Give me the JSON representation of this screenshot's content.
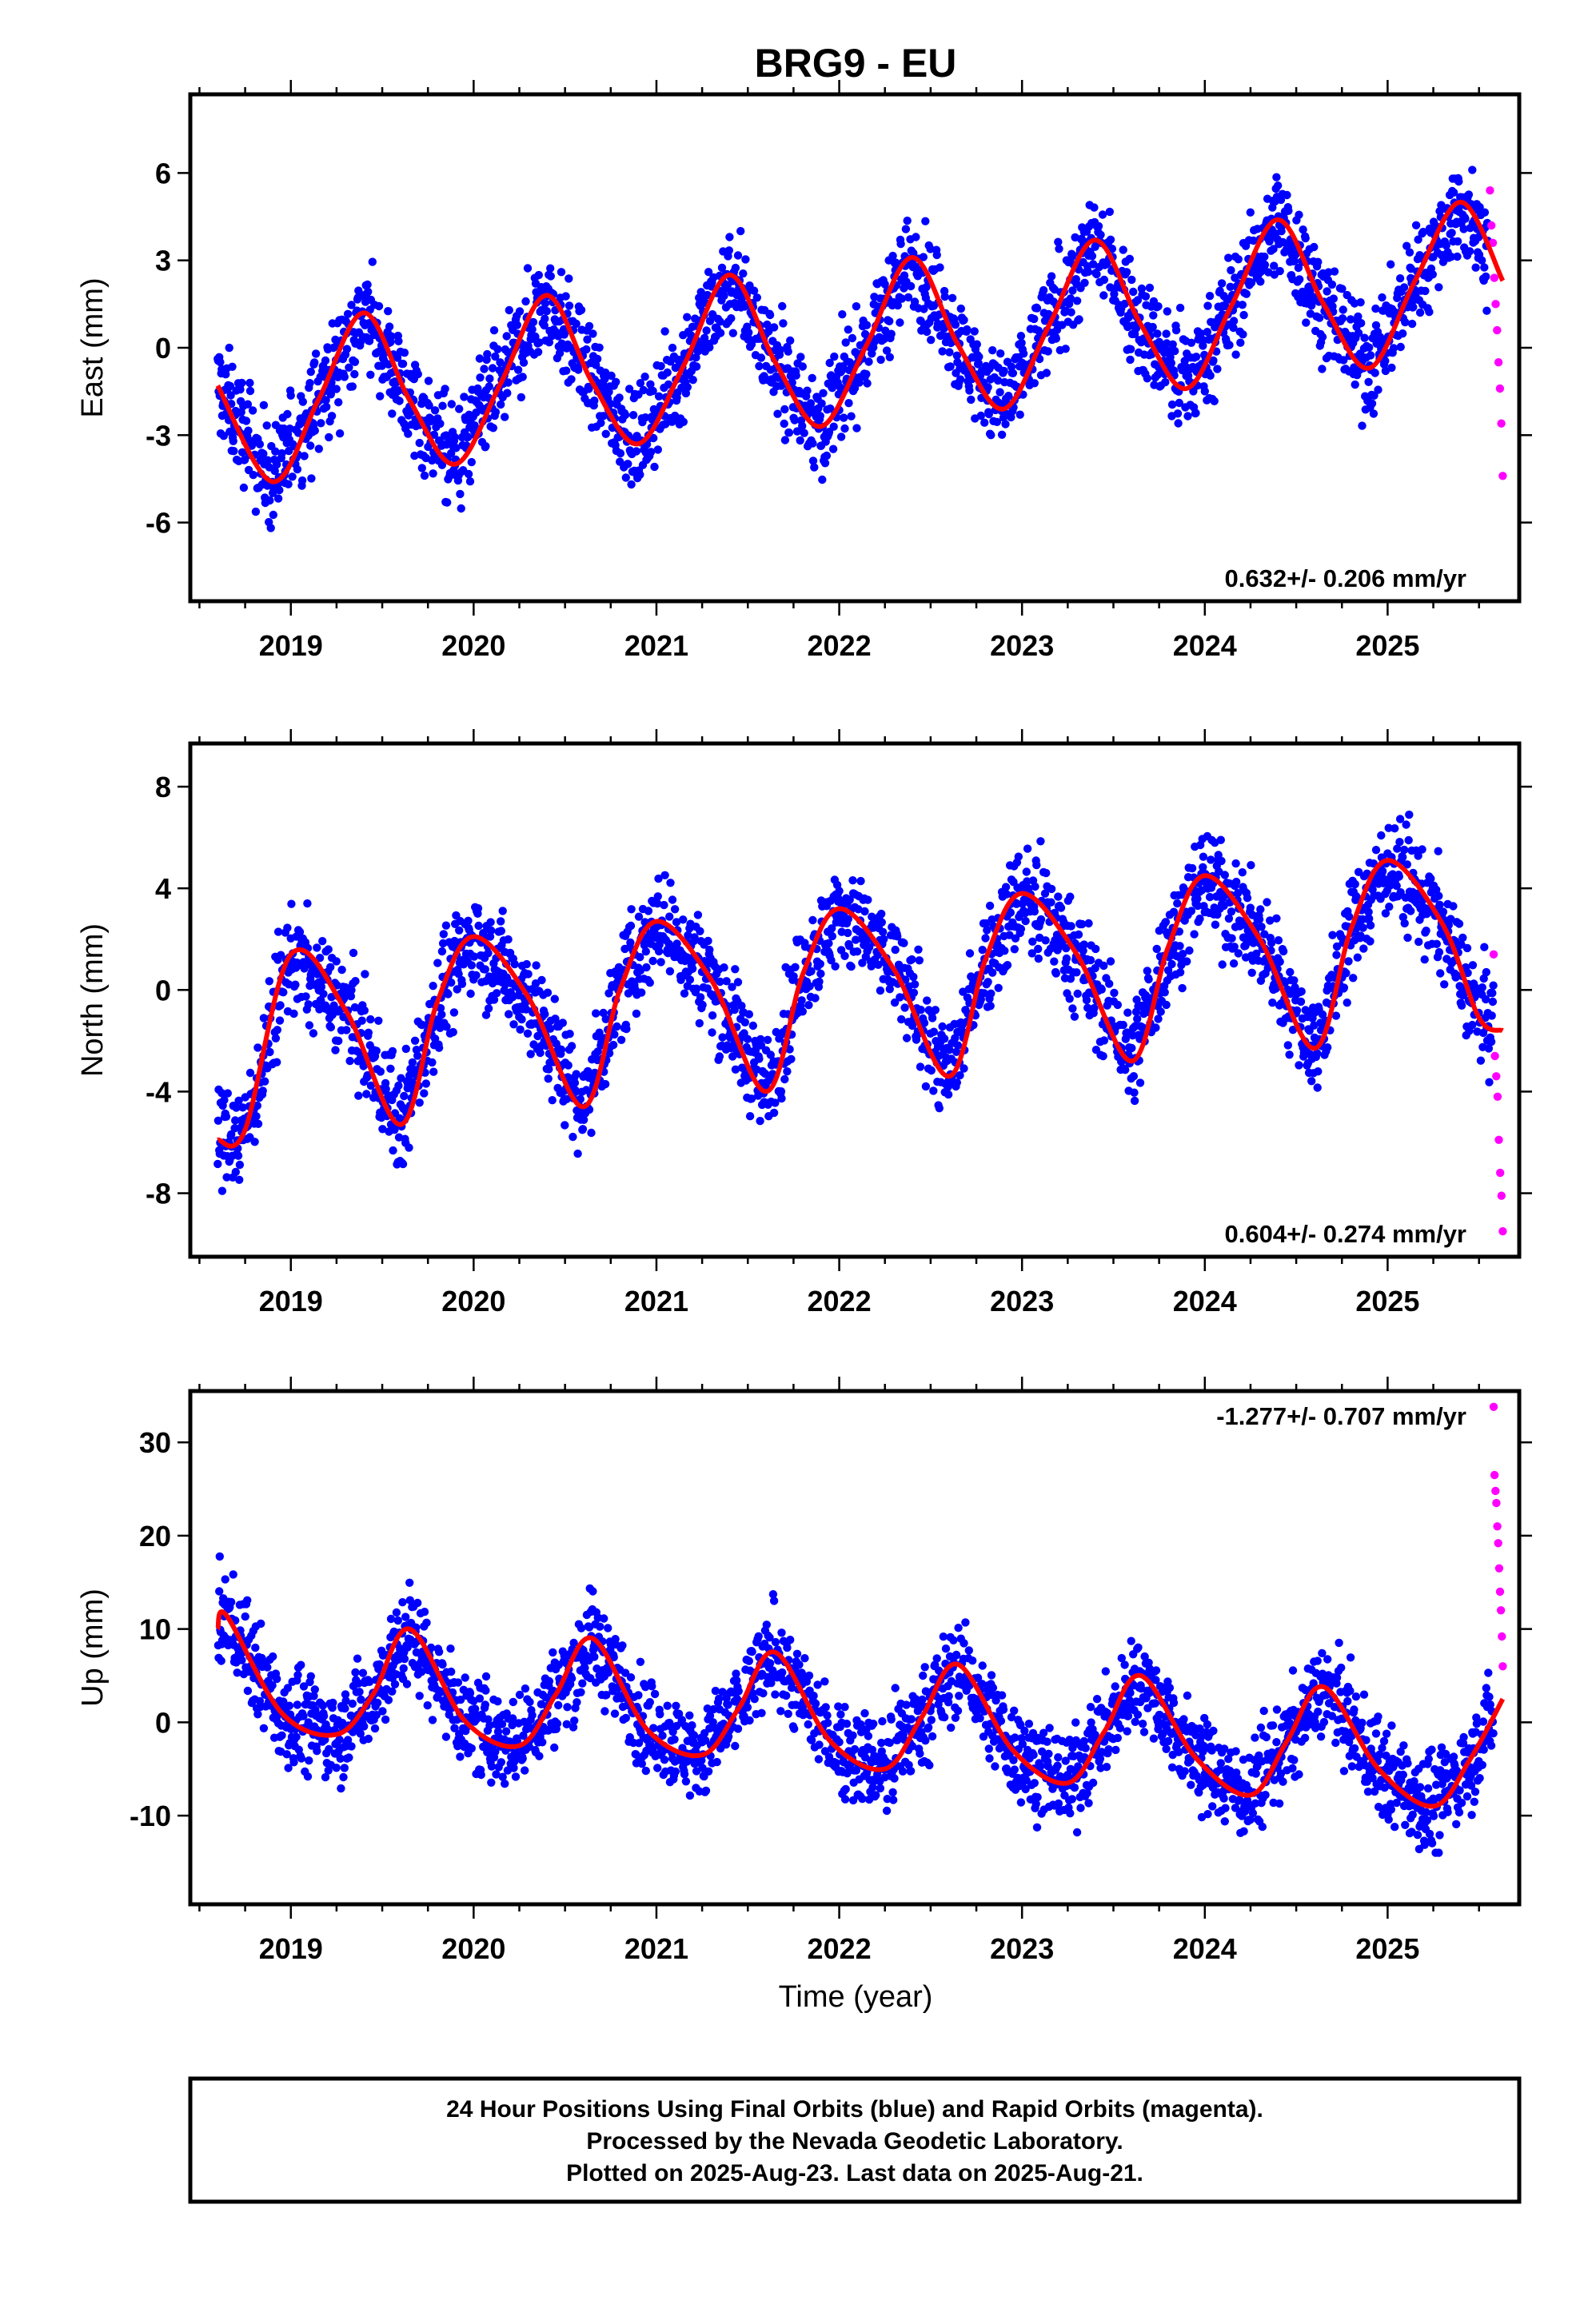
{
  "title": "BRG9 - EU",
  "x_axis_label": "Time (year)",
  "x_ticks": [
    "2019",
    "2020",
    "2021",
    "2022",
    "2023",
    "2024",
    "2025"
  ],
  "footer": {
    "line1": "24 Hour Positions Using Final Orbits (blue) and Rapid Orbits (magenta).",
    "line2": "Processed by the Nevada Geodetic Laboratory.",
    "line3": "Plotted on 2025-Aug-23. Last data on 2025-Aug-21."
  },
  "colors": {
    "final_orbits": "#0000ff",
    "rapid_orbits": "#ff00ff",
    "model_fit": "#ff0000",
    "frame": "#000000"
  },
  "chart_data": [
    {
      "type": "scatter",
      "ylabel": "East (mm)",
      "rate_label": "0.632+/- 0.206 mm/yr",
      "xlim": [
        2018.45,
        2025.72
      ],
      "ylim": [
        -8.7,
        8.7
      ],
      "y_ticks": [
        "6",
        "3",
        "0",
        "-3",
        "-6"
      ],
      "series": [
        {
          "name": "Final Orbits (blue)",
          "color": "#0000ff",
          "x_range": [
            2018.6,
            2025.55
          ],
          "trend_mm_per_yr": 0.632
        },
        {
          "name": "Rapid Orbits (magenta)",
          "color": "#ff00ff",
          "x_range": [
            2025.56,
            2025.63
          ],
          "y": [
            5.4,
            4.2,
            3.6,
            2.4,
            1.5,
            0.6,
            -0.5,
            -1.4,
            -2.6,
            -4.4
          ]
        },
        {
          "name": "Model fit",
          "color": "#ff0000",
          "x": [
            2018.6,
            2018.9,
            2019.15,
            2019.4,
            2019.65,
            2019.9,
            2020.15,
            2020.4,
            2020.65,
            2020.9,
            2021.15,
            2021.4,
            2021.65,
            2021.9,
            2022.15,
            2022.4,
            2022.65,
            2022.9,
            2023.15,
            2023.4,
            2023.65,
            2023.9,
            2024.15,
            2024.4,
            2024.65,
            2024.9,
            2025.15,
            2025.4,
            2025.63
          ],
          "y": [
            -1.3,
            -4.6,
            -1.8,
            1.2,
            -1.8,
            -4.0,
            -1.2,
            1.8,
            -1.2,
            -3.3,
            -0.6,
            2.5,
            -0.5,
            -2.7,
            0.1,
            3.1,
            0.1,
            -2.1,
            0.8,
            3.7,
            0.8,
            -1.4,
            1.5,
            4.4,
            1.5,
            -0.7,
            2.3,
            5.0,
            2.3
          ]
        }
      ]
    },
    {
      "type": "scatter",
      "ylabel": "North (mm)",
      "rate_label": "0.604+/- 0.274 mm/yr",
      "xlim": [
        2018.45,
        2025.72
      ],
      "ylim": [
        -10.5,
        9.7
      ],
      "y_ticks": [
        "8",
        "4",
        "0",
        "-4",
        "-8"
      ],
      "series": [
        {
          "name": "Final Orbits (blue)",
          "color": "#0000ff",
          "x_range": [
            2018.6,
            2025.58
          ],
          "trend_mm_per_yr": 0.604
        },
        {
          "name": "Rapid Orbits (magenta)",
          "color": "#ff00ff",
          "x_range": [
            2025.58,
            2025.63
          ],
          "y": [
            1.4,
            -2.6,
            -3.4,
            -4.2,
            -5.9,
            -7.2,
            -8.1,
            -9.5
          ]
        },
        {
          "name": "Model fit",
          "color": "#ff0000",
          "x": [
            2018.6,
            2018.75,
            2019.0,
            2019.3,
            2019.6,
            2019.8,
            2020.0,
            2020.3,
            2020.6,
            2020.8,
            2021.0,
            2021.3,
            2021.6,
            2021.8,
            2022.0,
            2022.3,
            2022.6,
            2022.8,
            2023.0,
            2023.3,
            2023.6,
            2023.8,
            2024.0,
            2024.3,
            2024.6,
            2024.8,
            2025.0,
            2025.3,
            2025.5,
            2025.63
          ],
          "y": [
            -5.9,
            -5.5,
            1.4,
            -0.8,
            -5.3,
            -0.5,
            2.1,
            -0.3,
            -4.6,
            0.0,
            2.7,
            0.4,
            -4.0,
            0.6,
            3.2,
            0.8,
            -3.4,
            1.2,
            3.8,
            1.4,
            -2.8,
            1.7,
            4.5,
            2.0,
            -2.3,
            2.4,
            5.1,
            2.6,
            -1.1,
            -1.6
          ]
        }
      ]
    },
    {
      "type": "scatter",
      "ylabel": "Up (mm)",
      "rate_label": "-1.277+/- 0.707 mm/yr",
      "xlim": [
        2018.45,
        2025.72
      ],
      "ylim": [
        -19.5,
        35.5
      ],
      "y_ticks": [
        "30",
        "20",
        "10",
        "0",
        "-10"
      ],
      "series": [
        {
          "name": "Final Orbits (blue)",
          "color": "#0000ff",
          "x_range": [
            2018.6,
            2025.58
          ],
          "trend_mm_per_yr": -1.277
        },
        {
          "name": "Rapid Orbits (magenta)",
          "color": "#ff00ff",
          "x_range": [
            2025.58,
            2025.63
          ],
          "y": [
            33.8,
            26.5,
            24.8,
            23.5,
            21.0,
            19.2,
            16.5,
            14.0,
            12.0,
            9.2,
            6.0
          ]
        },
        {
          "name": "Model fit",
          "color": "#ff0000",
          "x": [
            2018.6,
            2018.65,
            2018.95,
            2019.25,
            2019.45,
            2019.65,
            2019.95,
            2020.25,
            2020.45,
            2020.65,
            2020.95,
            2021.25,
            2021.45,
            2021.65,
            2021.95,
            2022.25,
            2022.45,
            2022.65,
            2022.95,
            2023.25,
            2023.45,
            2023.65,
            2023.95,
            2024.25,
            2024.45,
            2024.65,
            2024.95,
            2025.25,
            2025.45,
            2025.63
          ],
          "y": [
            10.0,
            11.4,
            1.0,
            -1.3,
            3.0,
            10.0,
            0.2,
            -2.5,
            3.0,
            9.0,
            -0.8,
            -3.5,
            1.5,
            7.5,
            -2.0,
            -5.0,
            0.5,
            6.2,
            -3.0,
            -6.5,
            -1.0,
            5.0,
            -3.8,
            -7.8,
            -2.0,
            3.8,
            -5.0,
            -9.0,
            -4.0,
            2.5
          ]
        }
      ]
    }
  ]
}
